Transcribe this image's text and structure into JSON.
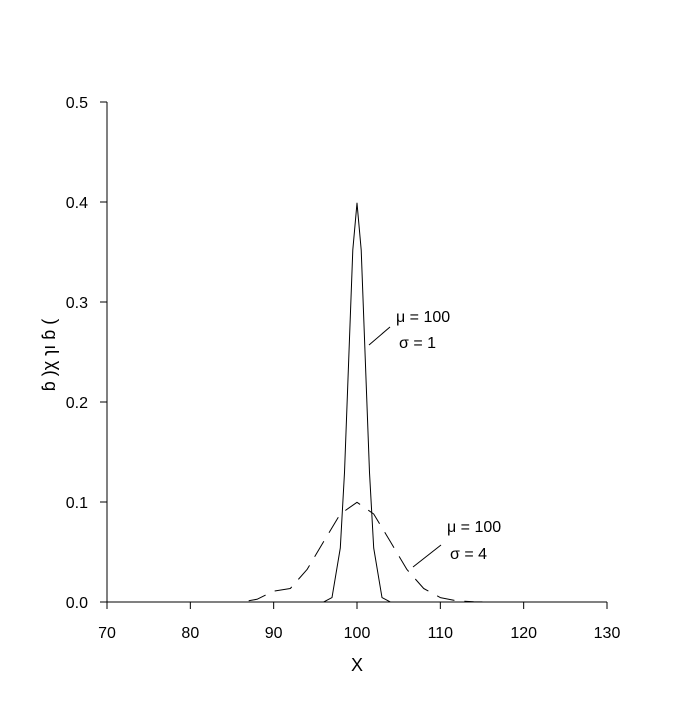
{
  "chart_data": {
    "type": "line",
    "xlabel": "X",
    "ylabel": "ɓ )χ ɿı ɓ (",
    "xlim": [
      70,
      130
    ],
    "ylim": [
      0,
      0.5
    ],
    "xticks": [
      "70",
      "80",
      "90",
      "100",
      "110",
      "120",
      "130"
    ],
    "yticks": [
      "0.0",
      "0.1",
      "0.2",
      "0.3",
      "0.4",
      "0.5"
    ],
    "grid": false,
    "series": [
      {
        "line_style": "solid",
        "color": "#000000",
        "x": [
          96,
          97,
          98,
          98.5,
          99,
          99.5,
          100,
          100.5,
          101,
          101.5,
          102,
          103,
          104
        ],
        "y": [
          0.0001,
          0.0044,
          0.054,
          0.1295,
          0.242,
          0.3521,
          0.3989,
          0.3521,
          0.242,
          0.1295,
          0.054,
          0.0044,
          0.0001
        ]
      },
      {
        "line_style": "dashed",
        "color": "#000000",
        "x": [
          87,
          88,
          90,
          92,
          94,
          96,
          98,
          100,
          102,
          104,
          106,
          108,
          110,
          112,
          114,
          116,
          118,
          119
        ],
        "y": [
          0.0013,
          0.0027,
          0.0109,
          0.0135,
          0.0324,
          0.0605,
          0.088,
          0.0997,
          0.088,
          0.0605,
          0.0324,
          0.0135,
          0.0044,
          0.0011,
          0.0002,
          3e-05,
          0.0,
          0.0
        ]
      }
    ],
    "annotations": [
      {
        "line1": "μ = 100",
        "line2": "σ = 1"
      },
      {
        "line1": "μ = 100",
        "line2": "σ = 4"
      }
    ]
  }
}
